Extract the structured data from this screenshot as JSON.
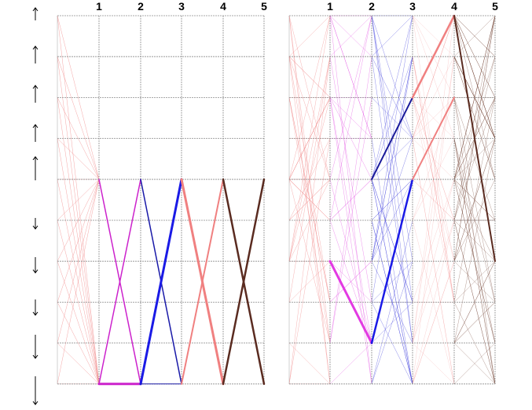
{
  "arrows": [
    "↑",
    "↑",
    "↑",
    "↑",
    "↑",
    "↓",
    "↓",
    "↓",
    "↓",
    "↓"
  ],
  "panels": [
    {
      "column_labels": [
        "1",
        "2",
        "3",
        "4",
        "5"
      ],
      "rows": 9,
      "fan_from_left_to_col1": {
        "to_row": 4,
        "from_rows": [
          0,
          1,
          2,
          3,
          4,
          5,
          6,
          7,
          8
        ]
      },
      "bold_segments": [
        {
          "from": [
            1,
            4
          ],
          "to": [
            2,
            9
          ],
          "color": "#cc22cc",
          "w": 1.5
        },
        {
          "from": [
            1,
            9
          ],
          "to": [
            2,
            4
          ],
          "color": "#cc22cc",
          "w": 1.5
        },
        {
          "from": [
            1,
            9
          ],
          "to": [
            2,
            9
          ],
          "color": "#cc22cc",
          "w": 3
        },
        {
          "from": [
            2,
            4
          ],
          "to": [
            3,
            9
          ],
          "color": "#1a1aa8",
          "w": 1.5
        },
        {
          "from": [
            2,
            9
          ],
          "to": [
            3,
            4
          ],
          "color": "#1a1ae6",
          "w": 3
        },
        {
          "from": [
            2,
            9
          ],
          "to": [
            3,
            9
          ],
          "color": "#1a1aa8",
          "w": 1
        },
        {
          "from": [
            3,
            4
          ],
          "to": [
            4,
            9
          ],
          "color": "#f08080",
          "w": 3
        },
        {
          "from": [
            3,
            9
          ],
          "to": [
            4,
            4
          ],
          "color": "#f08080",
          "w": 2
        },
        {
          "from": [
            4,
            4
          ],
          "to": [
            5,
            9
          ],
          "color": "#5a2b20",
          "w": 2.5
        },
        {
          "from": [
            4,
            9
          ],
          "to": [
            5,
            4
          ],
          "color": "#5a2b20",
          "w": 2.5
        }
      ]
    },
    {
      "column_labels": [
        "1",
        "2",
        "3",
        "4",
        "5"
      ],
      "rows": 9,
      "bold_segments": [
        {
          "from": [
            1,
            6
          ],
          "to": [
            2,
            8
          ],
          "color": "#e23ae2",
          "w": 3
        },
        {
          "from": [
            2,
            8
          ],
          "to": [
            3,
            4
          ],
          "color": "#1a1ae6",
          "w": 2.5
        },
        {
          "from": [
            2,
            4
          ],
          "to": [
            3,
            2
          ],
          "color": "#1a1a9a",
          "w": 2
        },
        {
          "from": [
            3,
            2
          ],
          "to": [
            4,
            0
          ],
          "color": "#f08080",
          "w": 2.5
        },
        {
          "from": [
            3,
            4
          ],
          "to": [
            4,
            2
          ],
          "color": "#f08080",
          "w": 2
        },
        {
          "from": [
            4,
            0
          ],
          "to": [
            5,
            6
          ],
          "color": "#5a2b20",
          "w": 2
        }
      ]
    }
  ],
  "colors": {
    "grid": "#8c8c8c",
    "seg0": "#f08080",
    "seg1": "#e040e0",
    "seg2": "#2a2ad8",
    "seg3": "#f08080",
    "seg4": "#6b3a2a"
  }
}
